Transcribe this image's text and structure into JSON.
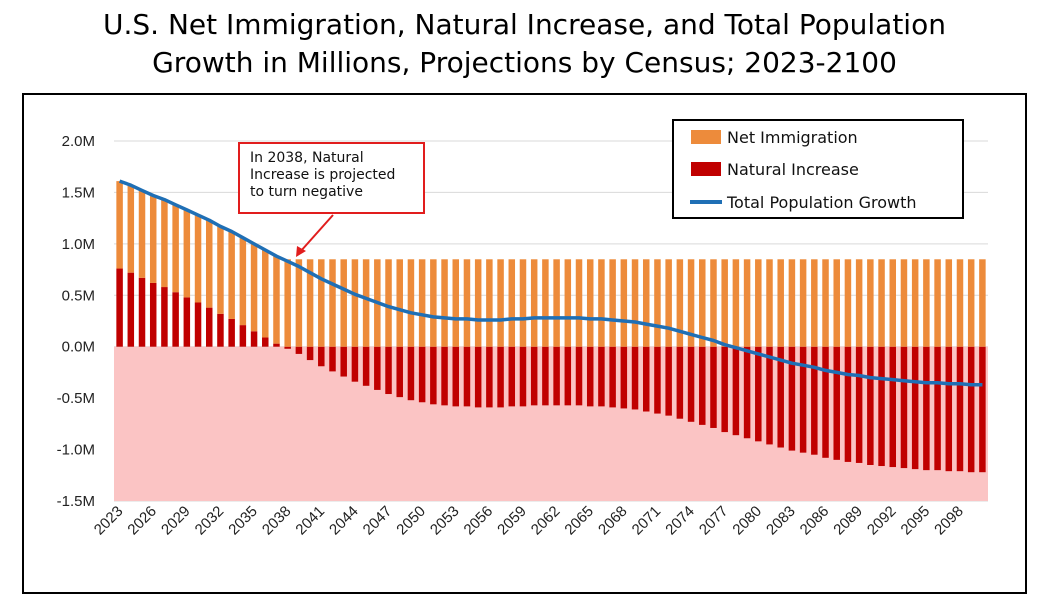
{
  "title_lines": [
    "U.S. Net Immigration, Natural Increase, and Total Population",
    "Growth in Millions, Projections by Census; 2023-2100"
  ],
  "annotation_lines": [
    "In 2038, Natural",
    "Increase is projected",
    "to turn negative"
  ],
  "colors": {
    "net_immigration": "#ed8b3b",
    "natural_increase": "#c00000",
    "total_growth": "#1f6fb5",
    "area_fill": "#fbc4c4",
    "annotation": "#e11d1d"
  },
  "chart_data": {
    "type": "bar",
    "title": "U.S. Net Immigration, Natural Increase, and Total Population Growth in Millions, Projections by Census; 2023-2100",
    "xlabel": "",
    "ylabel": "",
    "ylim": [
      -1.5,
      2.0
    ],
    "y_ticks": [
      {
        "value": 2.0,
        "label": "2.0M"
      },
      {
        "value": 1.5,
        "label": "1.5M"
      },
      {
        "value": 1.0,
        "label": "1.0M"
      },
      {
        "value": 0.5,
        "label": "0.5M"
      },
      {
        "value": 0.0,
        "label": "0.0M"
      },
      {
        "value": -0.5,
        "label": "-0.5M"
      },
      {
        "value": -1.0,
        "label": "-1.0M"
      },
      {
        "value": -1.5,
        "label": "-1.5M"
      }
    ],
    "x_tick_labels": [
      "2023",
      "2026",
      "2029",
      "2032",
      "2035",
      "2038",
      "2041",
      "2044",
      "2047",
      "2050",
      "2053",
      "2056",
      "2059",
      "2062",
      "2065",
      "2068",
      "2071",
      "2074",
      "2077",
      "2080",
      "2083",
      "2086",
      "2089",
      "2092",
      "2095",
      "2098"
    ],
    "grid": true,
    "legend_position": "top-right",
    "years": [
      2023,
      2024,
      2025,
      2026,
      2027,
      2028,
      2029,
      2030,
      2031,
      2032,
      2033,
      2034,
      2035,
      2036,
      2037,
      2038,
      2039,
      2040,
      2041,
      2042,
      2043,
      2044,
      2045,
      2046,
      2047,
      2048,
      2049,
      2050,
      2051,
      2052,
      2053,
      2054,
      2055,
      2056,
      2057,
      2058,
      2059,
      2060,
      2061,
      2062,
      2063,
      2064,
      2065,
      2066,
      2067,
      2068,
      2069,
      2070,
      2071,
      2072,
      2073,
      2074,
      2075,
      2076,
      2077,
      2078,
      2079,
      2080,
      2081,
      2082,
      2083,
      2084,
      2085,
      2086,
      2087,
      2088,
      2089,
      2090,
      2091,
      2092,
      2093,
      2094,
      2095,
      2096,
      2097,
      2098,
      2099,
      2100
    ],
    "series": [
      {
        "name": "Net Immigration",
        "kind": "bar",
        "values": [
          0.85,
          0.85,
          0.85,
          0.85,
          0.85,
          0.85,
          0.85,
          0.85,
          0.85,
          0.85,
          0.85,
          0.85,
          0.85,
          0.85,
          0.85,
          0.85,
          0.85,
          0.85,
          0.85,
          0.85,
          0.85,
          0.85,
          0.85,
          0.85,
          0.85,
          0.85,
          0.85,
          0.85,
          0.85,
          0.85,
          0.85,
          0.85,
          0.85,
          0.85,
          0.85,
          0.85,
          0.85,
          0.85,
          0.85,
          0.85,
          0.85,
          0.85,
          0.85,
          0.85,
          0.85,
          0.85,
          0.85,
          0.85,
          0.85,
          0.85,
          0.85,
          0.85,
          0.85,
          0.85,
          0.85,
          0.85,
          0.85,
          0.85,
          0.85,
          0.85,
          0.85,
          0.85,
          0.85,
          0.85,
          0.85,
          0.85,
          0.85,
          0.85,
          0.85,
          0.85,
          0.85,
          0.85,
          0.85,
          0.85,
          0.85,
          0.85,
          0.85,
          0.85
        ]
      },
      {
        "name": "Natural Increase",
        "kind": "bar",
        "values": [
          0.76,
          0.72,
          0.67,
          0.62,
          0.58,
          0.53,
          0.48,
          0.43,
          0.38,
          0.32,
          0.27,
          0.21,
          0.15,
          0.09,
          0.03,
          -0.02,
          -0.07,
          -0.13,
          -0.19,
          -0.24,
          -0.29,
          -0.34,
          -0.38,
          -0.42,
          -0.46,
          -0.49,
          -0.52,
          -0.54,
          -0.56,
          -0.57,
          -0.58,
          -0.58,
          -0.59,
          -0.59,
          -0.59,
          -0.58,
          -0.58,
          -0.57,
          -0.57,
          -0.57,
          -0.57,
          -0.57,
          -0.58,
          -0.58,
          -0.59,
          -0.6,
          -0.61,
          -0.63,
          -0.65,
          -0.67,
          -0.7,
          -0.73,
          -0.76,
          -0.79,
          -0.83,
          -0.86,
          -0.89,
          -0.92,
          -0.95,
          -0.98,
          -1.01,
          -1.03,
          -1.05,
          -1.08,
          -1.1,
          -1.12,
          -1.13,
          -1.15,
          -1.16,
          -1.17,
          -1.18,
          -1.19,
          -1.2,
          -1.2,
          -1.21,
          -1.21,
          -1.22,
          -1.22
        ]
      },
      {
        "name": "Total Population Growth",
        "kind": "line",
        "values": [
          1.61,
          1.57,
          1.52,
          1.47,
          1.43,
          1.38,
          1.33,
          1.28,
          1.23,
          1.17,
          1.12,
          1.06,
          1.0,
          0.94,
          0.88,
          0.83,
          0.78,
          0.72,
          0.66,
          0.61,
          0.56,
          0.51,
          0.47,
          0.43,
          0.39,
          0.36,
          0.33,
          0.31,
          0.29,
          0.28,
          0.27,
          0.27,
          0.26,
          0.26,
          0.26,
          0.27,
          0.27,
          0.28,
          0.28,
          0.28,
          0.28,
          0.28,
          0.27,
          0.27,
          0.26,
          0.25,
          0.24,
          0.22,
          0.2,
          0.18,
          0.15,
          0.12,
          0.09,
          0.06,
          0.02,
          -0.01,
          -0.04,
          -0.07,
          -0.1,
          -0.13,
          -0.16,
          -0.18,
          -0.2,
          -0.23,
          -0.25,
          -0.27,
          -0.28,
          -0.3,
          -0.31,
          -0.32,
          -0.33,
          -0.34,
          -0.35,
          -0.35,
          -0.36,
          -0.36,
          -0.37,
          -0.37
        ]
      }
    ]
  }
}
